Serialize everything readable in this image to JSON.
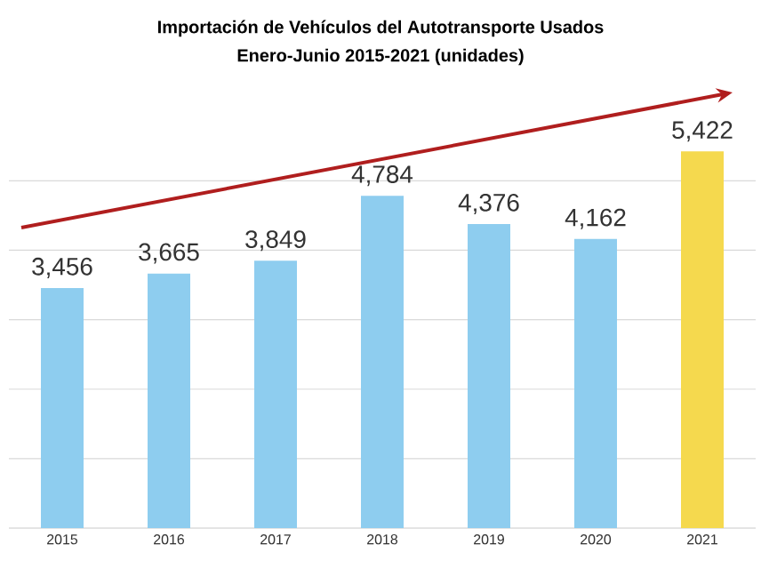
{
  "chart_data": {
    "type": "bar",
    "title": "Importación de Vehículos del Autotransporte Usados",
    "subtitle": "Enero-Junio 2015-2021 (unidades)",
    "categories": [
      "2015",
      "2016",
      "2017",
      "2018",
      "2019",
      "2020",
      "2021"
    ],
    "values": [
      3456,
      3665,
      3849,
      4784,
      4376,
      4162,
      5422
    ],
    "value_labels": [
      "3,456",
      "3,665",
      "3,849",
      "4,784",
      "4,376",
      "4,162",
      "5,422"
    ],
    "colors": [
      "#8ecdef",
      "#8ecdef",
      "#8ecdef",
      "#8ecdef",
      "#8ecdef",
      "#8ecdef",
      "#f5d94e"
    ],
    "grid": "y",
    "tick_labels": "x"
  }
}
